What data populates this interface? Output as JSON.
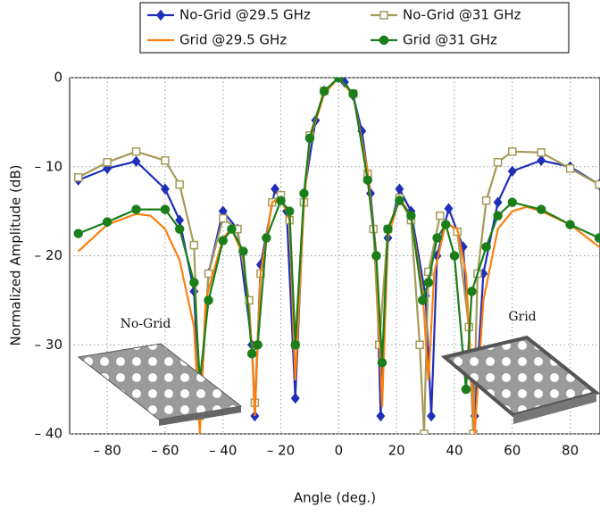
{
  "chart_data": {
    "type": "line",
    "xlabel": "Angle (deg.)",
    "ylabel": "Normalized Amplitude (dB)",
    "xlim": [
      -93,
      90
    ],
    "ylim": [
      -40,
      0
    ],
    "grid": true,
    "xticks": [
      {
        "value": -80,
        "label": "– 80"
      },
      {
        "value": -60,
        "label": "– 60"
      },
      {
        "value": -40,
        "label": "– 40"
      },
      {
        "value": -20,
        "label": "– 20"
      },
      0,
      20,
      40,
      60,
      80
    ],
    "yticks": [
      {
        "value": -40,
        "label": "– 40"
      },
      {
        "value": -30,
        "label": "– 30"
      },
      {
        "value": -20,
        "label": "– 20"
      },
      {
        "value": -10,
        "label": "– 10"
      },
      0
    ],
    "annotations": [
      "No-Grid",
      "Grid"
    ],
    "series": [
      {
        "name": "No-Grid @29.5 GHz",
        "color": "#1f2fb8",
        "marker": "diamond",
        "x": [
          -90,
          -80,
          -70,
          -60,
          -55,
          -50,
          -48,
          -45,
          -40,
          -35,
          -30,
          -29,
          -27,
          -22,
          -18,
          -15,
          -12,
          -8,
          -5,
          0,
          2,
          5,
          8,
          11,
          13,
          14.5,
          17,
          21,
          25,
          30,
          32,
          34,
          38,
          43,
          47,
          50,
          55,
          60,
          70,
          80,
          90
        ],
        "values": [
          -11.5,
          -10.2,
          -9.4,
          -12.5,
          -16,
          -24,
          -38,
          -22,
          -15,
          -17,
          -30,
          -38,
          -21,
          -12.5,
          -15,
          -36,
          -13,
          -4.8,
          -1.5,
          0,
          -0.5,
          -2,
          -6,
          -13,
          -20,
          -38,
          -18,
          -12.5,
          -15,
          -24.5,
          -38,
          -20,
          -14.7,
          -19,
          -38,
          -22,
          -14,
          -10.5,
          -9.3,
          -10,
          -12
        ]
      },
      {
        "name": "No-Grid @31 GHz",
        "color": "#a49a5a",
        "marker": "square",
        "x": [
          -90,
          -80,
          -70,
          -60,
          -55,
          -50,
          -48,
          -45,
          -40,
          -35,
          -31,
          -29,
          -27,
          -23,
          -20,
          -17,
          -15,
          -12,
          -10,
          -5,
          0,
          5,
          10,
          12,
          14,
          17,
          21,
          25,
          28,
          29.5,
          31,
          35,
          41,
          45,
          46.5,
          48,
          51,
          55,
          60,
          70,
          80,
          90
        ],
        "values": [
          -11.2,
          -9.5,
          -8.3,
          -9.3,
          -12,
          -18.8,
          -38,
          -22,
          -15.8,
          -17,
          -25,
          -36.5,
          -22,
          -14,
          -13.2,
          -16,
          -30,
          -14,
          -6.5,
          -1.5,
          0,
          -1.8,
          -10.8,
          -17,
          -30,
          -17,
          -13.5,
          -16,
          -30,
          -40,
          -21.8,
          -15.5,
          -17.3,
          -28,
          -40,
          -22,
          -13.8,
          -9.5,
          -8.3,
          -8.4,
          -10.2,
          -12
        ]
      },
      {
        "name": "Grid @29.5 GHz",
        "color": "#ff7f0e",
        "marker": "none",
        "x": [
          -90,
          -80,
          -70,
          -65,
          -60,
          -55,
          -50,
          -48,
          -46,
          -40,
          -37,
          -33,
          -30,
          -29,
          -27,
          -23,
          -20,
          -17,
          -15,
          -12,
          -10,
          -5,
          0,
          5,
          10,
          13,
          15,
          17,
          21,
          25,
          29,
          31,
          33,
          37,
          41,
          44,
          47,
          50,
          55,
          60,
          65,
          70,
          80,
          90
        ],
        "values": [
          -19.5,
          -16.5,
          -15.3,
          -15.5,
          -17,
          -20.5,
          -28,
          -40,
          -25,
          -18,
          -17,
          -20,
          -30,
          -38,
          -22,
          -14,
          -13.5,
          -16,
          -34,
          -14,
          -7,
          -1.8,
          0,
          -2,
          -10.5,
          -20,
          -37,
          -18,
          -13.5,
          -15.5,
          -24,
          -34,
          -22,
          -16.3,
          -17,
          -22,
          -40,
          -25,
          -17,
          -15,
          -14.5,
          -15,
          -16.5,
          -19
        ]
      },
      {
        "name": "Grid @31 GHz",
        "color": "#1a7f1a",
        "marker": "circle",
        "x": [
          -90,
          -80,
          -70,
          -60,
          -55,
          -50,
          -48,
          -45,
          -40,
          -37,
          -33,
          -30,
          -28,
          -25,
          -20,
          -17,
          -15,
          -12,
          -10,
          -5,
          0,
          5,
          10,
          13,
          15,
          17,
          21,
          25,
          29,
          31,
          34,
          37,
          40,
          44,
          46,
          51,
          55,
          60,
          70,
          80,
          90
        ],
        "values": [
          -17.5,
          -16.2,
          -14.8,
          -14.8,
          -17,
          -23,
          -34,
          -25,
          -18.3,
          -17,
          -19.5,
          -31,
          -30,
          -18,
          -13.8,
          -15,
          -30,
          -13,
          -6.8,
          -1.5,
          0,
          -1.8,
          -11.5,
          -20,
          -32,
          -17,
          -13.8,
          -15.5,
          -25,
          -23,
          -18,
          -16.5,
          -20,
          -35,
          -24,
          -19,
          -15.5,
          -14,
          -14.8,
          -16.5,
          -18
        ]
      }
    ]
  }
}
